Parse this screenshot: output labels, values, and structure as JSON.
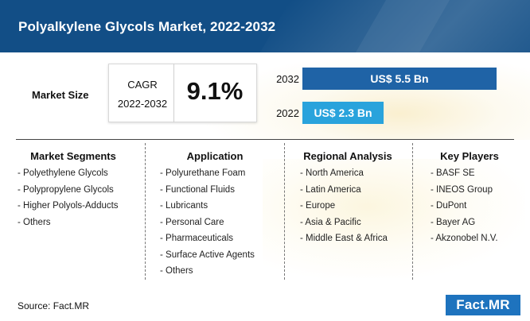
{
  "header": {
    "title": "Polyalkylene Glycols Market, 2022-2032"
  },
  "market_size": {
    "label": "Market Size",
    "cagr_label": "CAGR",
    "cagr_period": "2022-2032",
    "cagr_value": "9.1%"
  },
  "chart_data": {
    "type": "bar",
    "orientation": "horizontal",
    "categories": [
      "2032",
      "2022"
    ],
    "values": [
      5.5,
      2.3
    ],
    "data_labels": [
      "US$ 5.5 Bn",
      "US$ 2.3 Bn"
    ],
    "unit": "US$ Bn",
    "colors": [
      "#1f63a6",
      "#29a3dc"
    ],
    "xlim": [
      0,
      5.5
    ]
  },
  "columns": [
    {
      "heading": "Market Segments",
      "items": [
        "- Polyethylene Glycols",
        "- Polypropylene Glycols",
        "- Higher Polyols-Adducts",
        "- Others"
      ]
    },
    {
      "heading": "Application",
      "items": [
        "- Polyurethane Foam",
        "- Functional Fluids",
        "- Lubricants",
        "- Personal Care",
        "- Pharmaceuticals",
        "- Surface Active Agents",
        "- Others"
      ]
    },
    {
      "heading": "Regional Analysis",
      "items": [
        "- North America",
        "- Latin America",
        "- Europe",
        "- Asia & Pacific",
        "- Middle East & Africa"
      ]
    },
    {
      "heading": "Key Players",
      "items": [
        "- BASF SE",
        "- INEOS Group",
        "- DuPont",
        "- Bayer AG",
        "- Akzonobel N.V."
      ]
    }
  ],
  "footer": {
    "source": "Source: Fact.MR",
    "brand": "Fact.MR"
  },
  "colors": {
    "header_bg": "#124e86",
    "bar_2032": "#1f63a6",
    "bar_2022": "#29a3dc",
    "brand_bg": "#1e73be"
  }
}
